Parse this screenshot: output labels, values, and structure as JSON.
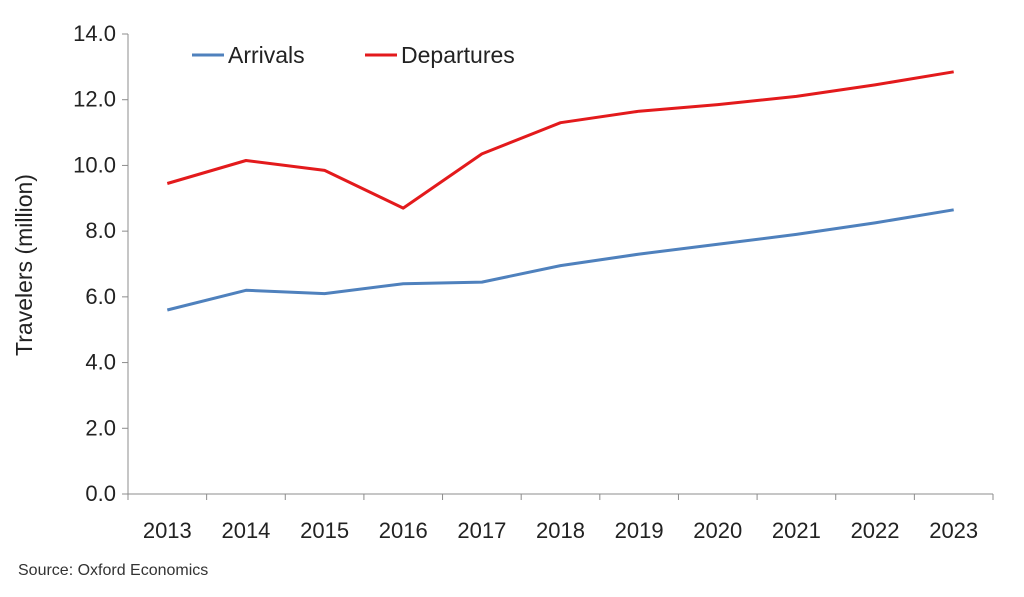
{
  "chart_data": {
    "type": "line",
    "title": "",
    "xlabel": "",
    "ylabel": "Travelers (million)",
    "categories": [
      "2013",
      "2014",
      "2015",
      "2016",
      "2017",
      "2018",
      "2019",
      "2020",
      "2021",
      "2022",
      "2023"
    ],
    "ylim": [
      0,
      14
    ],
    "yticks": [
      "0.0",
      "2.0",
      "4.0",
      "6.0",
      "8.0",
      "10.0",
      "12.0",
      "14.0"
    ],
    "grid": false,
    "legend_position": "top-left",
    "series": [
      {
        "name": "Arrivals",
        "color": "#4f81bd",
        "values": [
          5.6,
          6.2,
          6.1,
          6.4,
          6.45,
          6.95,
          7.3,
          7.6,
          7.9,
          8.25,
          8.65
        ]
      },
      {
        "name": "Departures",
        "color": "#e31a1c",
        "values": [
          9.45,
          10.15,
          9.85,
          8.7,
          10.35,
          11.3,
          11.65,
          11.85,
          12.1,
          12.45,
          12.85
        ]
      }
    ]
  },
  "source": "Source:  Oxford Economics"
}
